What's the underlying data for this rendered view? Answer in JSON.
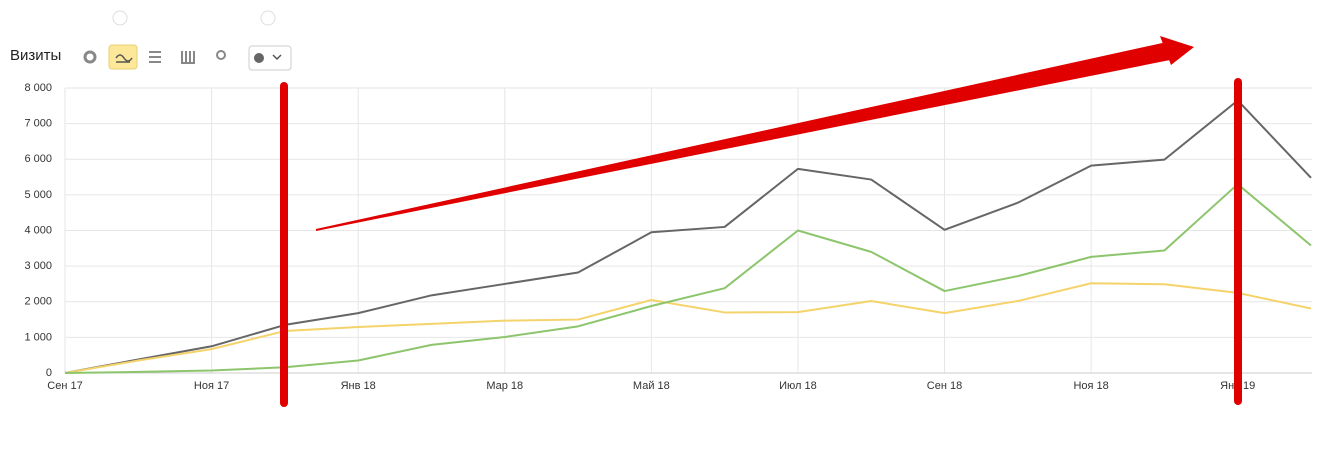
{
  "toolbar": {
    "title": "Визиты"
  },
  "chart_data": {
    "type": "line",
    "categories": [
      "Сен 17",
      null,
      "Ноя 17",
      null,
      "Янв 18",
      null,
      "Мар 18",
      null,
      "Май 18",
      null,
      "Июл 18",
      null,
      "Сен 18",
      null,
      "Ноя 18",
      null,
      "Янв 19",
      null
    ],
    "series": [
      {
        "color": "#666666",
        "values": [
          0,
          380,
          750,
          1350,
          1680,
          2180,
          2500,
          2820,
          3950,
          4100,
          5730,
          5430,
          4020,
          4780,
          5820,
          5990,
          7650,
          5480
        ]
      },
      {
        "color": "#f5d36b",
        "values": [
          0,
          350,
          670,
          1180,
          1290,
          1380,
          1470,
          1500,
          2050,
          1700,
          1710,
          2020,
          1680,
          2020,
          2520,
          2490,
          2250,
          1810
        ]
      },
      {
        "color": "#8cc56c",
        "values": [
          0,
          30,
          70,
          160,
          350,
          790,
          1010,
          1310,
          1880,
          2380,
          4000,
          3400,
          2300,
          2720,
          3260,
          3440,
          5300,
          3580
        ]
      }
    ],
    "ylim": [
      0,
      8000
    ],
    "yticks": [
      0,
      {
        "value": 1000,
        "label": "1 000"
      },
      {
        "value": 2000,
        "label": "2 000"
      },
      {
        "value": 3000,
        "label": "3 000"
      },
      {
        "value": 4000,
        "label": "4 000"
      },
      {
        "value": 5000,
        "label": "5 000"
      },
      {
        "value": 6000,
        "label": "6 000"
      },
      {
        "value": 7000,
        "label": "7 000"
      },
      {
        "value": 8000,
        "label": "8 000"
      }
    ],
    "grid": true
  }
}
